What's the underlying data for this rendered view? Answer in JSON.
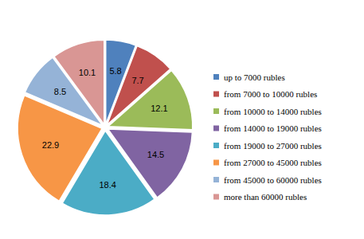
{
  "chart_data": {
    "type": "pie",
    "categories": [
      "up to 7000 rubles",
      "from 7000 to 10000 rubles",
      "from 10000 to 14000 rubles",
      "from 14000 to 19000 rubles",
      "from 19000 to 27000 rubles",
      "from 27000 to 45000 rubles",
      "from 45000 to 60000 rubles",
      "more than 60000 rubles"
    ],
    "values": [
      5.8,
      7.7,
      12.1,
      14.5,
      18.4,
      22.9,
      8.5,
      10.1
    ],
    "colors": [
      "#4f81bd",
      "#c0504d",
      "#9bbb59",
      "#8064a2",
      "#4bacc6",
      "#f79646",
      "#95b3d7",
      "#d99694"
    ],
    "data_labels": true,
    "legend": "right"
  }
}
